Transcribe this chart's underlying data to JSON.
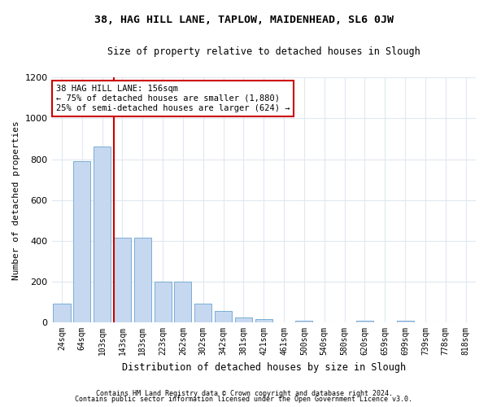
{
  "title1": "38, HAG HILL LANE, TAPLOW, MAIDENHEAD, SL6 0JW",
  "title2": "Size of property relative to detached houses in Slough",
  "xlabel": "Distribution of detached houses by size in Slough",
  "ylabel": "Number of detached properties",
  "footer1": "Contains HM Land Registry data © Crown copyright and database right 2024.",
  "footer2": "Contains public sector information licensed under the Open Government Licence v3.0.",
  "bar_labels": [
    "24sqm",
    "64sqm",
    "103sqm",
    "143sqm",
    "183sqm",
    "223sqm",
    "262sqm",
    "302sqm",
    "342sqm",
    "381sqm",
    "421sqm",
    "461sqm",
    "500sqm",
    "540sqm",
    "580sqm",
    "620sqm",
    "659sqm",
    "699sqm",
    "739sqm",
    "778sqm",
    "818sqm"
  ],
  "bar_values": [
    90,
    790,
    860,
    415,
    415,
    200,
    200,
    90,
    55,
    25,
    15,
    0,
    10,
    0,
    0,
    10,
    0,
    10,
    0,
    0,
    0
  ],
  "bar_color": "#c5d8f0",
  "bar_edgecolor": "#7aadd4",
  "vline_color": "#cc0000",
  "annotation_text": "38 HAG HILL LANE: 156sqm\n← 75% of detached houses are smaller (1,880)\n25% of semi-detached houses are larger (624) →",
  "annotation_box_color": "#ffffff",
  "annotation_box_edgecolor": "#cc0000",
  "ylim": [
    0,
    1200
  ],
  "yticks": [
    0,
    200,
    400,
    600,
    800,
    1000,
    1200
  ],
  "bg_color": "#ffffff",
  "plot_bg_color": "#ffffff",
  "grid_color": "#e0e8f0",
  "title1_fontsize": 9.5,
  "title2_fontsize": 8.5,
  "ylabel_fontsize": 8.0,
  "xlabel_fontsize": 8.5,
  "tick_fontsize": 7.0,
  "footer_fontsize": 6.0,
  "ann_fontsize": 7.5
}
